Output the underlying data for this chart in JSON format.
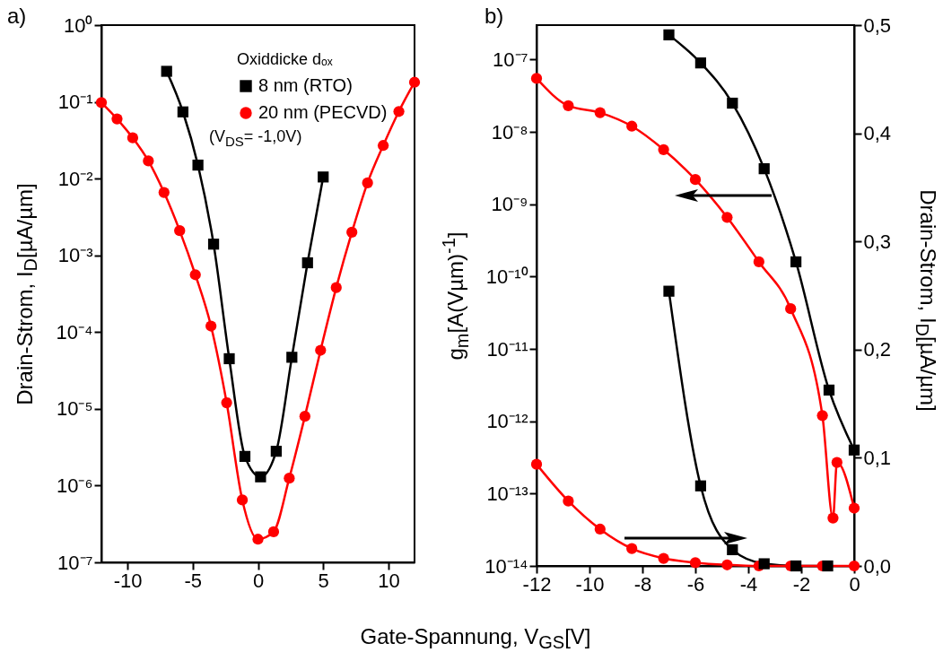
{
  "chart_data": [
    {
      "type": "line",
      "title": "a)",
      "xlabel": "Gate-Spannung, V$_{GS}$[V]",
      "ylabel": "Drain-Strom, I$_{D}$[µA/µm]",
      "legend_title": "Oxiddicke dₒₓ",
      "annotations": [
        "(V$_{DS}$= -1,0V)"
      ],
      "legend": "top right",
      "log": "y",
      "xlim": [
        -12,
        12
      ],
      "xticks": [
        -10,
        -5,
        0,
        5,
        10
      ],
      "ylim": [
        1e-07,
        1
      ],
      "yticks": [
        {
          "value": 1e-07,
          "label": "10⁻⁷"
        },
        {
          "value": 1e-06,
          "label": "10⁻⁶"
        },
        {
          "value": 1e-05,
          "label": "10⁻⁵"
        },
        {
          "value": 0.0001,
          "label": "10⁻⁴"
        },
        {
          "value": 0.001,
          "label": "10⁻³"
        },
        {
          "value": 0.01,
          "label": "10⁻²"
        },
        {
          "value": 0.1,
          "label": "10⁻¹"
        },
        {
          "value": 1,
          "label": "10⁰"
        }
      ],
      "series": [
        {
          "name": "8 nm (RTO)",
          "color": "#000000",
          "marker": "square",
          "x": [
            -7.0,
            -5.75,
            -4.6,
            -3.4,
            -2.2,
            -1.0,
            0.2,
            1.4,
            2.6,
            3.8,
            5.0
          ],
          "values": [
            0.25,
            0.074,
            0.015,
            0.0014,
            4.5e-05,
            2.4e-06,
            1.3e-06,
            2.8e-06,
            4.7e-05,
            0.0008,
            0.0105
          ]
        },
        {
          "name": "20 nm (PECVD)",
          "color": "#ff0000",
          "marker": "circle",
          "x": [
            -12,
            -10.8,
            -9.6,
            -8.4,
            -7.2,
            -6.0,
            -4.8,
            -3.6,
            -2.4,
            -1.2,
            0,
            1.2,
            2.4,
            3.6,
            4.8,
            6.0,
            7.2,
            8.4,
            9.6,
            10.8,
            12
          ],
          "values": [
            0.098,
            0.06,
            0.034,
            0.017,
            0.0066,
            0.0021,
            0.00056,
            0.00012,
            1.2e-05,
            6.5e-07,
            2e-07,
            2.5e-07,
            1.25e-06,
            8e-06,
            5.8e-05,
            0.00038,
            0.002,
            0.0088,
            0.027,
            0.075,
            0.18
          ]
        }
      ]
    },
    {
      "type": "line",
      "title": "b)",
      "ylabel": "g$_{m}$[A(Vµm)$^{-1}$]",
      "y2label": "Drain-Strom, I$_{D}$[µA/µm]",
      "log": "y",
      "xlim": [
        -12,
        0
      ],
      "xticks": [
        -12,
        -10,
        -8,
        -6,
        -4,
        -2,
        0
      ],
      "ylim": [
        1e-14,
        3e-07
      ],
      "yticks": [
        {
          "value": 1e-14,
          "label": "10⁻¹⁴"
        },
        {
          "value": 1e-13,
          "label": "10⁻¹³"
        },
        {
          "value": 1e-12,
          "label": "10⁻¹²"
        },
        {
          "value": 1e-11,
          "label": "10⁻¹¹"
        },
        {
          "value": 1e-10,
          "label": "10⁻¹⁰"
        },
        {
          "value": 1e-09,
          "label": "10⁻⁹"
        },
        {
          "value": 1e-08,
          "label": "10⁻⁸"
        },
        {
          "value": 1e-07,
          "label": "10⁻⁷"
        }
      ],
      "y2lim": [
        0,
        0.5
      ],
      "y2ticks": [
        {
          "value": 0,
          "label": "0,0"
        },
        {
          "value": 0.1,
          "label": "0,1"
        },
        {
          "value": 0.2,
          "label": "0,2"
        },
        {
          "value": 0.3,
          "label": "0,3"
        },
        {
          "value": 0.4,
          "label": "0,4"
        },
        {
          "value": 0.5,
          "label": "0,5"
        }
      ],
      "series": [
        {
          "color": "#000000",
          "marker": "square",
          "axis": "y",
          "x": [
            -7.0,
            -5.8,
            -4.6,
            -3.4,
            -2.2,
            -0.95,
            0
          ],
          "values": [
            2.2e-07,
            9e-08,
            2.5e-08,
            3.1e-09,
            1.6e-10,
            2.7e-12,
            4e-13
          ]
        },
        {
          "color": "#ff0000",
          "marker": "circle",
          "axis": "y",
          "x": [
            -12,
            -10.8,
            -9.6,
            -8.4,
            -7.2,
            -6.0,
            -4.8,
            -3.6,
            -2.4,
            -1.2,
            -0.8,
            -0.65,
            0
          ],
          "values": [
            5.5e-08,
            2.3e-08,
            1.85e-08,
            1.2e-08,
            5.7e-09,
            2.2e-09,
            6.6e-10,
            1.6e-10,
            3.6e-11,
            1.2e-12,
            4.6e-14,
            2.7e-13,
            6.3e-14
          ]
        },
        {
          "color": "#000000",
          "marker": "square",
          "axis": "y2",
          "x": [
            -7.0,
            -5.8,
            -4.6,
            -3.4,
            -2.2,
            -1.0
          ],
          "values": [
            0.254,
            0.074,
            0.015,
            0.002,
            0,
            0
          ]
        },
        {
          "color": "#ff0000",
          "marker": "circle",
          "axis": "y2",
          "x": [
            -12,
            -10.8,
            -9.6,
            -8.4,
            -7.2,
            -6.0,
            -4.8,
            -3.6,
            -2.4,
            -1.2,
            0
          ],
          "values": [
            0.094,
            0.06,
            0.034,
            0.016,
            0.007,
            0.003,
            0.001,
            0,
            0,
            0,
            0
          ]
        }
      ]
    }
  ]
}
